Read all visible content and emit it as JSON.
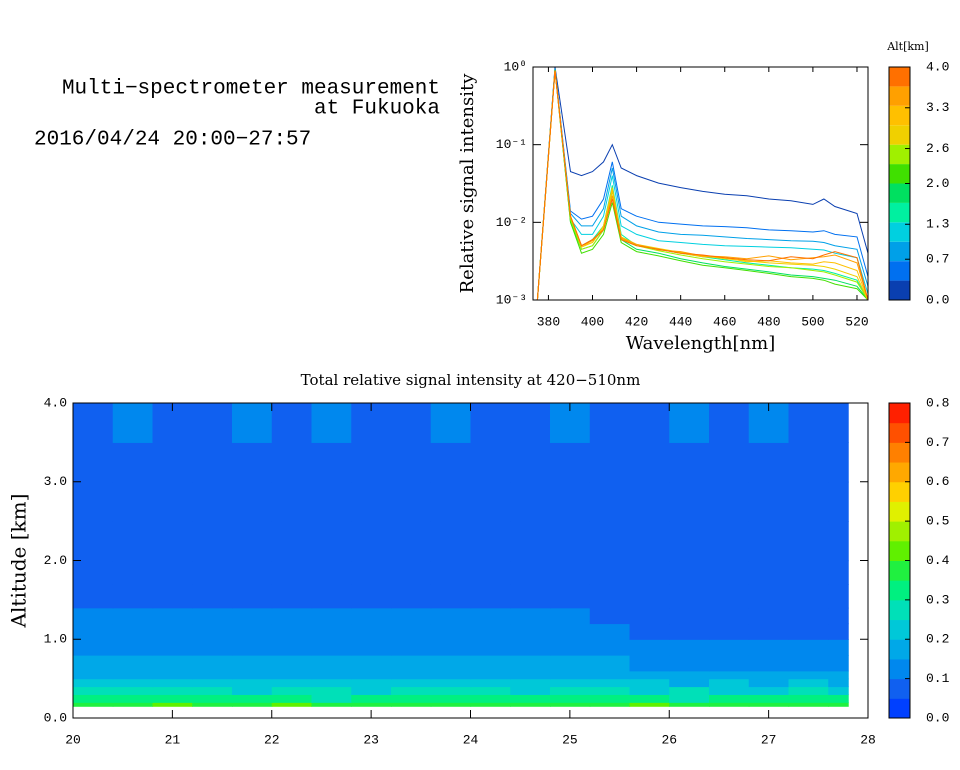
{
  "header": {
    "title_line1": "Multi−spectrometer measurement",
    "title_line2": "at Fukuoka",
    "date": "2016/04/24 20:00−27:57"
  },
  "chart_data": [
    {
      "type": "line",
      "xlabel": "Wavelength[nm]",
      "ylabel": "Relative signal intensity",
      "log_y": true,
      "x": [
        375,
        383,
        390,
        395,
        400,
        405,
        409,
        413,
        420,
        430,
        440,
        450,
        460,
        470,
        480,
        490,
        500,
        505,
        510,
        520,
        525
      ],
      "xlim": [
        373,
        525
      ],
      "xticks": [
        380,
        400,
        420,
        440,
        460,
        480,
        500,
        520
      ],
      "ylim": [
        0.001,
        1
      ],
      "yticks": [
        {
          "value": 0.001,
          "label": "10⁻³"
        },
        {
          "value": 0.01,
          "label": "10⁻²"
        },
        {
          "value": 0.1,
          "label": "10⁻¹"
        },
        {
          "value": 1,
          "label": "10⁰"
        }
      ],
      "colorbar": {
        "label": "Alt[km]",
        "lim": [
          0,
          4
        ],
        "ticks": [
          {
            "value": 0,
            "label": "0.0"
          },
          0.7,
          1.3,
          {
            "value": 2,
            "label": "2.0"
          },
          2.6,
          3.3,
          {
            "value": 4,
            "label": "4.0"
          }
        ]
      },
      "series": [
        {
          "color": "#0a3fb0",
          "values": [
            0.001,
            1.0,
            0.045,
            0.04,
            0.045,
            0.06,
            0.1,
            0.05,
            0.04,
            0.032,
            0.028,
            0.025,
            0.023,
            0.022,
            0.02,
            0.019,
            0.017,
            0.02,
            0.016,
            0.013,
            0.004
          ]
        },
        {
          "color": "#0070f0",
          "values": [
            0.001,
            0.95,
            0.014,
            0.011,
            0.012,
            0.02,
            0.06,
            0.015,
            0.012,
            0.01,
            0.0095,
            0.009,
            0.0088,
            0.0085,
            0.008,
            0.0078,
            0.0075,
            0.0078,
            0.007,
            0.0065,
            0.002
          ]
        },
        {
          "color": "#00a0e8",
          "values": [
            0.001,
            0.95,
            0.013,
            0.009,
            0.009,
            0.015,
            0.05,
            0.012,
            0.009,
            0.0075,
            0.007,
            0.0068,
            0.0065,
            0.0062,
            0.006,
            0.0058,
            0.0057,
            0.0055,
            0.005,
            0.0045,
            0.0015
          ]
        },
        {
          "color": "#00d0e0",
          "values": [
            0.001,
            0.93,
            0.011,
            0.007,
            0.007,
            0.012,
            0.04,
            0.009,
            0.007,
            0.0058,
            0.0055,
            0.0052,
            0.005,
            0.0049,
            0.0048,
            0.0047,
            0.0045,
            0.0044,
            0.004,
            0.0035,
            0.0012
          ]
        },
        {
          "color": "#00f0a0",
          "values": [
            0.001,
            0.92,
            0.011,
            0.005,
            0.006,
            0.009,
            0.03,
            0.007,
            0.005,
            0.0045,
            0.004,
            0.0036,
            0.0033,
            0.003,
            0.0028,
            0.0026,
            0.0025,
            0.0024,
            0.0022,
            0.0018,
            0.001
          ]
        },
        {
          "color": "#00e060",
          "values": [
            0.001,
            0.92,
            0.01,
            0.0045,
            0.005,
            0.008,
            0.022,
            0.006,
            0.0045,
            0.004,
            0.0034,
            0.003,
            0.0027,
            0.0025,
            0.0023,
            0.0021,
            0.002,
            0.0019,
            0.0018,
            0.0015,
            0.001
          ]
        },
        {
          "color": "#40e000",
          "values": [
            0.001,
            0.91,
            0.01,
            0.004,
            0.0045,
            0.007,
            0.018,
            0.0055,
            0.0042,
            0.0037,
            0.0032,
            0.0028,
            0.0026,
            0.0024,
            0.0022,
            0.002,
            0.0019,
            0.0018,
            0.0016,
            0.0014,
            0.001
          ]
        },
        {
          "color": "#a0f000",
          "values": [
            0.001,
            0.91,
            0.011,
            0.0045,
            0.005,
            0.008,
            0.025,
            0.006,
            0.005,
            0.0043,
            0.0038,
            0.0034,
            0.0031,
            0.0029,
            0.0027,
            0.0026,
            0.0024,
            0.0023,
            0.0021,
            0.0017,
            0.001
          ]
        },
        {
          "color": "#f0d000",
          "values": [
            0.001,
            0.9,
            0.012,
            0.005,
            0.0055,
            0.009,
            0.028,
            0.0065,
            0.0052,
            0.0046,
            0.0041,
            0.0037,
            0.0034,
            0.0032,
            0.003,
            0.0029,
            0.0028,
            0.0027,
            0.0025,
            0.002,
            0.001
          ]
        },
        {
          "color": "#ffc000",
          "values": [
            0.001,
            0.9,
            0.012,
            0.0048,
            0.0055,
            0.0085,
            0.026,
            0.0062,
            0.005,
            0.0045,
            0.004,
            0.0036,
            0.0035,
            0.0031,
            0.0032,
            0.003,
            0.0029,
            0.0031,
            0.003,
            0.0024,
            0.001
          ]
        },
        {
          "color": "#ffa000",
          "values": [
            0.001,
            0.9,
            0.012,
            0.005,
            0.0058,
            0.008,
            0.022,
            0.0063,
            0.0052,
            0.0044,
            0.0042,
            0.0037,
            0.0036,
            0.0034,
            0.0037,
            0.0033,
            0.0035,
            0.0036,
            0.0038,
            0.003,
            0.001
          ]
        },
        {
          "color": "#ff7000",
          "values": [
            0.001,
            0.9,
            0.012,
            0.005,
            0.006,
            0.008,
            0.02,
            0.006,
            0.005,
            0.0045,
            0.004,
            0.0038,
            0.0035,
            0.0033,
            0.0032,
            0.0036,
            0.0034,
            0.0038,
            0.0042,
            0.0035,
            0.001
          ]
        }
      ]
    },
    {
      "type": "contour",
      "title": "Total relative signal intensity at 420−510nm",
      "ylabel": "Altitude [km]",
      "xlim": [
        20,
        28
      ],
      "xticks": [
        20,
        21,
        22,
        23,
        24,
        25,
        26,
        27,
        28
      ],
      "ylim": [
        0,
        4
      ],
      "yticks": [
        {
          "value": 0,
          "label": "0.0"
        },
        {
          "value": 1,
          "label": "1.0"
        },
        {
          "value": 2,
          "label": "2.0"
        },
        {
          "value": 3,
          "label": "3.0"
        },
        {
          "value": 4,
          "label": "4.0"
        }
      ],
      "xbins": [
        20.0,
        20.4,
        20.8,
        21.2,
        21.6,
        22.0,
        22.4,
        22.8,
        23.2,
        23.6,
        24.0,
        24.4,
        24.8,
        25.2,
        25.6,
        26.0,
        26.4,
        26.8,
        27.2,
        27.6,
        27.8
      ],
      "ybins": [
        0.15,
        0.2,
        0.3,
        0.4,
        0.5,
        0.6,
        0.8,
        1.0,
        1.2,
        1.4,
        1.7,
        2.0,
        2.5,
        3.0,
        3.5,
        4.0
      ],
      "levels": [
        0,
        0.05,
        0.1,
        0.15,
        0.2,
        0.25,
        0.3,
        0.35,
        0.4,
        0.45,
        0.5,
        0.55,
        0.6,
        0.65,
        0.7,
        0.75,
        0.8
      ],
      "colors": [
        "#0040ff",
        "#1060f0",
        "#0088ee",
        "#00a8e8",
        "#00c8d8",
        "#00e0b8",
        "#00f080",
        "#20f040",
        "#60f000",
        "#a0f000",
        "#e0f000",
        "#ffd000",
        "#ffa800",
        "#ff8000",
        "#ff5000",
        "#ff2000"
      ],
      "colorbar_ticks": [
        {
          "value": 0,
          "label": "0.0"
        },
        0.1,
        0.2,
        0.3,
        0.4,
        0.5,
        0.6,
        0.7,
        0.8
      ],
      "z": [
        [
          0.36,
          0.38,
          0.4,
          0.37,
          0.36,
          0.42,
          0.35,
          0.37,
          0.38,
          0.36,
          0.39,
          0.37,
          0.36,
          0.38,
          0.4,
          0.36,
          0.37,
          0.35,
          0.38,
          0.36
        ],
        [
          0.3,
          0.32,
          0.33,
          0.31,
          0.3,
          0.34,
          0.29,
          0.31,
          0.32,
          0.3,
          0.31,
          0.3,
          0.31,
          0.32,
          0.3,
          0.29,
          0.31,
          0.3,
          0.32,
          0.3
        ],
        [
          0.25,
          0.26,
          0.27,
          0.25,
          0.24,
          0.26,
          0.25,
          0.24,
          0.25,
          0.26,
          0.25,
          0.24,
          0.25,
          0.26,
          0.24,
          0.25,
          0.24,
          0.23,
          0.25,
          0.24
        ],
        [
          0.21,
          0.22,
          0.21,
          0.2,
          0.21,
          0.22,
          0.2,
          0.21,
          0.2,
          0.21,
          0.22,
          0.2,
          0.21,
          0.2,
          0.2,
          0.19,
          0.2,
          0.19,
          0.2,
          0.19
        ],
        [
          0.18,
          0.18,
          0.19,
          0.18,
          0.17,
          0.18,
          0.17,
          0.18,
          0.18,
          0.17,
          0.18,
          0.18,
          0.17,
          0.17,
          0.16,
          0.16,
          0.16,
          0.15,
          0.16,
          0.15
        ],
        [
          0.16,
          0.16,
          0.17,
          0.16,
          0.16,
          0.16,
          0.15,
          0.16,
          0.16,
          0.16,
          0.16,
          0.16,
          0.15,
          0.15,
          0.14,
          0.13,
          0.13,
          0.13,
          0.13,
          0.12
        ],
        [
          0.14,
          0.14,
          0.14,
          0.14,
          0.13,
          0.14,
          0.13,
          0.14,
          0.14,
          0.14,
          0.14,
          0.14,
          0.13,
          0.12,
          0.11,
          0.11,
          0.11,
          0.1,
          0.11,
          0.1
        ],
        [
          0.12,
          0.12,
          0.12,
          0.12,
          0.12,
          0.12,
          0.12,
          0.12,
          0.12,
          0.12,
          0.12,
          0.12,
          0.11,
          0.1,
          0.09,
          0.09,
          0.09,
          0.09,
          0.09,
          0.09
        ],
        [
          0.1,
          0.1,
          0.1,
          0.1,
          0.1,
          0.1,
          0.1,
          0.1,
          0.1,
          0.1,
          0.11,
          0.11,
          0.1,
          0.08,
          0.08,
          0.07,
          0.07,
          0.07,
          0.07,
          0.07
        ],
        [
          0.07,
          0.07,
          0.07,
          0.07,
          0.07,
          0.07,
          0.07,
          0.07,
          0.07,
          0.08,
          0.08,
          0.08,
          0.07,
          0.07,
          0.06,
          0.06,
          0.06,
          0.06,
          0.06,
          0.06
        ],
        [
          0.06,
          0.06,
          0.07,
          0.06,
          0.06,
          0.06,
          0.06,
          0.07,
          0.06,
          0.06,
          0.06,
          0.06,
          0.06,
          0.06,
          0.06,
          0.06,
          0.07,
          0.06,
          0.06,
          0.06
        ],
        [
          0.06,
          0.07,
          0.06,
          0.06,
          0.07,
          0.06,
          0.06,
          0.06,
          0.07,
          0.06,
          0.06,
          0.07,
          0.06,
          0.06,
          0.07,
          0.06,
          0.06,
          0.06,
          0.07,
          0.06
        ],
        [
          0.07,
          0.07,
          0.08,
          0.07,
          0.07,
          0.07,
          0.08,
          0.07,
          0.07,
          0.07,
          0.07,
          0.08,
          0.07,
          0.07,
          0.07,
          0.07,
          0.08,
          0.07,
          0.07,
          0.07
        ],
        [
          0.08,
          0.07,
          0.08,
          0.08,
          0.07,
          0.08,
          0.08,
          0.07,
          0.08,
          0.08,
          0.08,
          0.07,
          0.08,
          0.08,
          0.07,
          0.08,
          0.08,
          0.07,
          0.08,
          0.08
        ],
        [
          0.09,
          0.1,
          0.09,
          0.09,
          0.1,
          0.09,
          0.1,
          0.09,
          0.09,
          0.1,
          0.09,
          0.09,
          0.1,
          0.09,
          0.09,
          0.1,
          0.09,
          0.1,
          0.09,
          0.09
        ]
      ]
    }
  ]
}
